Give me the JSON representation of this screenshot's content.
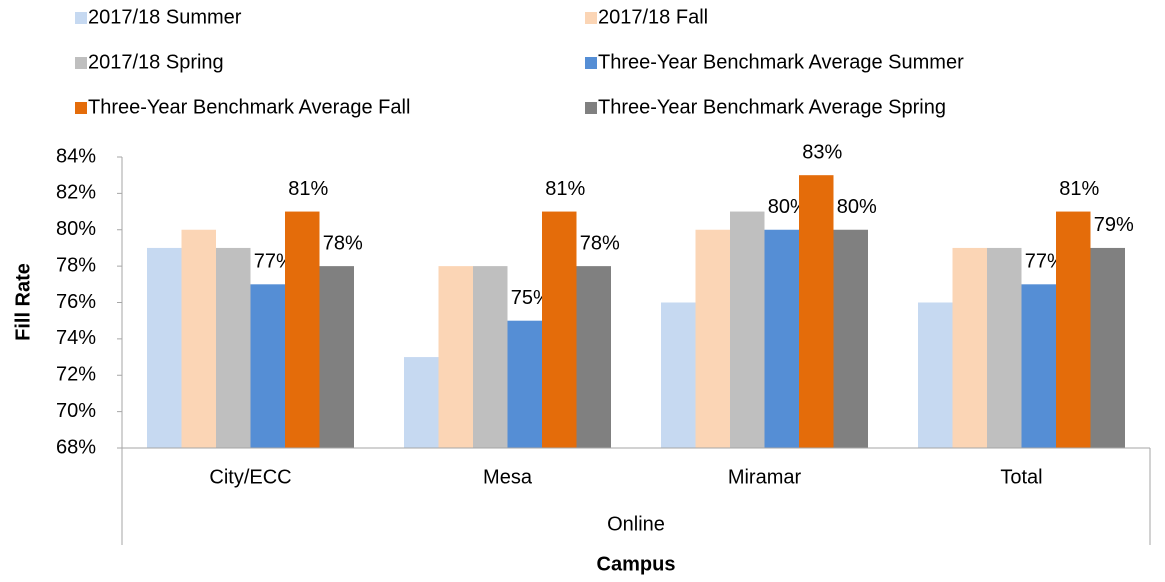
{
  "chart_data": {
    "type": "bar",
    "xlabel": "Campus",
    "ylabel": "Fill Rate",
    "x_group": "Online",
    "categories": [
      "City/ECC",
      "Mesa",
      "Miramar",
      "Total"
    ],
    "series": [
      {
        "name": "2017/18 Summer",
        "color": "#c6d9f1",
        "values": [
          79,
          73,
          76,
          76
        ]
      },
      {
        "name": "2017/18 Fall",
        "color": "#fbd5b5",
        "values": [
          80,
          78,
          80,
          79
        ]
      },
      {
        "name": "2017/18 Spring",
        "color": "#bfbfbf",
        "values": [
          79,
          78,
          81,
          79
        ]
      },
      {
        "name": "Three-Year Benchmark Average Summer",
        "color": "#558ed5",
        "values": [
          77,
          75,
          80,
          77
        ],
        "value_labels": [
          "77%",
          "75%",
          "80%",
          "77%"
        ]
      },
      {
        "name": "Three-Year Benchmark Average Fall",
        "color": "#e46c0a",
        "values": [
          81,
          81,
          83,
          81
        ],
        "value_labels": [
          "81%",
          "81%",
          "83%",
          "81%"
        ]
      },
      {
        "name": "Three-Year Benchmark Average Spring",
        "color": "#808080",
        "values": [
          78,
          78,
          80,
          79
        ],
        "value_labels": [
          "78%",
          "78%",
          "80%",
          "79%"
        ]
      }
    ],
    "ylim": [
      68,
      84
    ],
    "yticks": [
      {
        "value": 68,
        "label": "68%"
      },
      {
        "value": 70,
        "label": "70%"
      },
      {
        "value": 72,
        "label": "72%"
      },
      {
        "value": 74,
        "label": "74%"
      },
      {
        "value": 76,
        "label": "76%"
      },
      {
        "value": 78,
        "label": "78%"
      },
      {
        "value": 80,
        "label": "80%"
      },
      {
        "value": 82,
        "label": "82%"
      },
      {
        "value": 84,
        "label": "84%"
      }
    ],
    "grid": false
  }
}
